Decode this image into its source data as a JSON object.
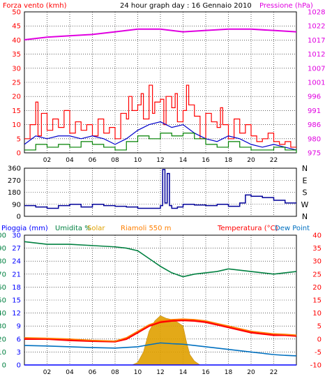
{
  "colors": {
    "wind": "#ff0000",
    "gust": "#ff0000",
    "wind_avg": "#0000cc",
    "wind_green": "#008000",
    "pressure": "#e000e0",
    "direction": "#000099",
    "rain": "#0000ff",
    "humidity": "#008040",
    "solar": "#e0a000",
    "riamoli": "#ff7f00",
    "temperature": "#ff0000",
    "dewpoint": "#0070c0",
    "grid": "#000000"
  },
  "chart_data": [
    {
      "type": "line",
      "title": "24 hour graph day : 16 Gennaio 2010",
      "left_label": "Forza vento (kmh)",
      "right_label": "Pressione (hPa)",
      "ylim": [
        0,
        50
      ],
      "yticks_left": [
        "0",
        "5",
        "10",
        "15",
        "20",
        "25",
        "30",
        "35",
        "40",
        "45",
        "50"
      ],
      "ylim_right": [
        975,
        1028
      ],
      "yticks_right": [
        "975",
        "980",
        "986",
        "991",
        "996",
        "1001",
        "1007",
        "1012",
        "1017",
        "1022",
        "1028"
      ],
      "xlim": [
        0,
        24
      ],
      "xticks": [
        "02",
        "04",
        "06",
        "08",
        "10",
        "12",
        "14",
        "16",
        "18",
        "20",
        "22"
      ],
      "series": [
        {
          "name": "Forza vento (kmh)",
          "key": "gust",
          "axis": "left",
          "style": "step",
          "x": [
            0,
            0.5,
            1,
            1.2,
            1.5,
            2,
            2.5,
            3,
            3.5,
            4,
            4.5,
            5,
            5.5,
            6,
            6.5,
            7,
            7.5,
            8,
            8.5,
            9,
            9.2,
            9.5,
            10,
            10.3,
            10.5,
            11,
            11.3,
            11.5,
            12,
            12.3,
            12.5,
            13,
            13.3,
            13.5,
            14,
            14.3,
            14.5,
            15,
            15.5,
            16,
            16.5,
            17,
            17.3,
            17.5,
            18,
            18.5,
            19,
            19.5,
            20,
            20.5,
            21,
            21.5,
            22,
            22.5,
            23,
            23.5,
            24
          ],
          "y": [
            5,
            10,
            18,
            6,
            14,
            8,
            12,
            9,
            15,
            7,
            11,
            8,
            10,
            6,
            12,
            7,
            9,
            5,
            14,
            12,
            20,
            15,
            17,
            21,
            12,
            24,
            14,
            18,
            19,
            10,
            20,
            16,
            21,
            11,
            15,
            24,
            17,
            13,
            5,
            14,
            11,
            9,
            16,
            10,
            5,
            12,
            7,
            10,
            6,
            4,
            5,
            7,
            4,
            3,
            4,
            2,
            2
          ]
        },
        {
          "name": "",
          "key": "wind_avg",
          "axis": "left",
          "style": "line",
          "x": [
            0,
            1,
            2,
            3,
            4,
            5,
            6,
            7,
            8,
            9,
            10,
            11,
            12,
            13,
            14,
            15,
            16,
            17,
            18,
            19,
            20,
            21,
            22,
            23,
            24
          ],
          "y": [
            3,
            6,
            5,
            6,
            6,
            5,
            6,
            5,
            3,
            5,
            8,
            10,
            11,
            9,
            10,
            7,
            5,
            4,
            6,
            5,
            3,
            2,
            3,
            2,
            1
          ]
        },
        {
          "name": "",
          "key": "wind_green",
          "axis": "left",
          "style": "step",
          "x": [
            0,
            1,
            2,
            3,
            4,
            5,
            6,
            7,
            8,
            9,
            10,
            11,
            12,
            13,
            14,
            15,
            16,
            17,
            18,
            19,
            20,
            21,
            22,
            23,
            24
          ],
          "y": [
            1,
            3,
            2,
            3,
            2,
            4,
            3,
            2,
            1,
            4,
            6,
            5,
            7,
            6,
            7,
            5,
            3,
            2,
            4,
            2,
            1,
            1,
            2,
            1,
            0
          ]
        },
        {
          "name": "Pressione (hPa)",
          "key": "pressure",
          "axis": "right",
          "style": "line",
          "x": [
            0,
            2,
            4,
            6,
            8,
            10,
            12,
            14,
            16,
            18,
            20,
            22,
            24
          ],
          "y": [
            1017.5,
            1018.5,
            1019,
            1019.5,
            1020.5,
            1021.5,
            1021.5,
            1020.5,
            1021,
            1021.5,
            1021.5,
            1021,
            1020.5
          ]
        }
      ]
    },
    {
      "type": "line",
      "ylim": [
        0,
        360
      ],
      "yticks_left": [
        "0",
        "90",
        "180",
        "270",
        "360"
      ],
      "right_labels": [
        "N",
        "W",
        "S",
        "E",
        "N"
      ],
      "xlim": [
        0,
        24
      ],
      "series": [
        {
          "name": "",
          "key": "direction",
          "style": "step",
          "x": [
            0,
            1,
            2,
            3,
            4,
            5,
            6,
            7,
            8,
            9,
            10,
            11,
            12,
            12.2,
            12.4,
            12.6,
            12.8,
            13,
            13.5,
            14,
            15,
            16,
            17,
            18,
            19,
            19.5,
            20,
            21,
            22,
            23,
            24
          ],
          "y": [
            80,
            70,
            60,
            80,
            90,
            70,
            90,
            80,
            75,
            70,
            60,
            60,
            80,
            350,
            100,
            320,
            80,
            60,
            70,
            90,
            85,
            80,
            90,
            75,
            100,
            160,
            150,
            140,
            120,
            100,
            100
          ]
        }
      ]
    },
    {
      "type": "line",
      "left_labels": [
        "Pioggia (mm)",
        "Umidita %",
        "Solar"
      ],
      "center_label": "Riamoli 550 m",
      "right_labels": [
        "Temperatura (°C)",
        "Dew Point"
      ],
      "yticks_rain": [
        "0",
        "3",
        "6",
        "9",
        "12",
        "15",
        "18",
        "21",
        "24",
        "27",
        "30"
      ],
      "yticks_humidity": [
        "0",
        "10",
        "20",
        "30",
        "40",
        "50",
        "60",
        "70",
        "80",
        "90",
        "100"
      ],
      "ylim_temp": [
        -10,
        40
      ],
      "yticks_temp": [
        "-10",
        "-5",
        "0",
        "5",
        "10",
        "15",
        "20",
        "25",
        "30",
        "35",
        "40"
      ],
      "xlim": [
        0,
        24
      ],
      "xticks": [
        "02",
        "04",
        "06",
        "08",
        "10",
        "12",
        "14",
        "16",
        "18",
        "20",
        "22"
      ],
      "series": [
        {
          "name": "Umidita %",
          "key": "humidity",
          "style": "line",
          "x": [
            0,
            1,
            2,
            4,
            6,
            8,
            9,
            10,
            11,
            12,
            13,
            14,
            15,
            16,
            17,
            18,
            19,
            20,
            21,
            22,
            23,
            24
          ],
          "y": [
            95,
            94,
            93,
            93,
            92,
            91,
            90,
            88,
            82,
            76,
            71,
            68,
            70,
            71,
            72,
            74,
            73,
            72,
            71,
            70,
            71,
            72
          ]
        },
        {
          "name": "Solar",
          "key": "solar",
          "style": "area",
          "x": [
            0,
            9.5,
            10,
            10.5,
            11,
            11.5,
            12,
            12.5,
            13,
            13.5,
            14,
            14.3,
            14.6,
            15,
            15.5,
            24
          ],
          "y": [
            0,
            0,
            2,
            10,
            26,
            34,
            38,
            36,
            35,
            33,
            30,
            18,
            8,
            3,
            0,
            0
          ]
        },
        {
          "name": "Temperatura (°C)",
          "key": "temperature",
          "style": "line",
          "x": [
            0,
            2,
            4,
            6,
            8,
            9,
            10,
            11,
            12,
            13,
            14,
            15,
            16,
            17,
            18,
            19,
            20,
            21,
            22,
            23,
            24
          ],
          "y": [
            0,
            0,
            -0.5,
            -0.8,
            -1,
            0,
            2.5,
            5,
            6.5,
            7,
            7.2,
            7,
            6.5,
            5.5,
            4.5,
            3.5,
            2.5,
            2,
            1.5,
            1.5,
            1.2
          ]
        },
        {
          "name": "Riamoli 550 m",
          "key": "riamoli",
          "style": "line",
          "x": [
            0,
            2,
            4,
            6,
            8,
            9,
            10,
            11,
            12,
            13,
            14,
            15,
            16,
            17,
            18,
            19,
            20,
            21,
            22,
            23,
            24
          ],
          "y": [
            0.5,
            0.3,
            0,
            -0.5,
            -0.8,
            0.5,
            3,
            5.5,
            7,
            7.5,
            7.7,
            7.5,
            7,
            6,
            5,
            4,
            3,
            2.5,
            2,
            1.8,
            1.5
          ]
        },
        {
          "name": "Dew Point",
          "key": "dewpoint",
          "style": "line",
          "x": [
            0,
            2,
            4,
            6,
            8,
            10,
            11,
            12,
            13,
            14,
            15,
            16,
            17,
            18,
            19,
            20,
            21,
            22,
            23,
            24
          ],
          "y": [
            -2.5,
            -2.7,
            -3,
            -3.3,
            -3.5,
            -3,
            -2.2,
            -1.5,
            -1.8,
            -2,
            -2.5,
            -3,
            -3.5,
            -4,
            -4.5,
            -5,
            -5.5,
            -6,
            -6.3,
            -6.5
          ]
        },
        {
          "name": "Pioggia (mm)",
          "key": "rain",
          "style": "line",
          "x": [
            0,
            24
          ],
          "y": [
            0,
            0
          ]
        }
      ]
    }
  ]
}
